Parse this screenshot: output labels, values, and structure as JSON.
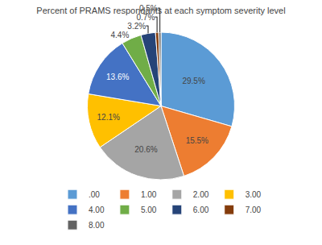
{
  "chart_data": {
    "type": "pie",
    "title": "Percent of PRAMS respondants at each symptom severity level",
    "categories": [
      ".00",
      "1.00",
      "2.00",
      "3.00",
      "4.00",
      "5.00",
      "6.00",
      "7.00",
      "8.00"
    ],
    "values": [
      29.5,
      15.5,
      20.6,
      12.1,
      13.6,
      4.4,
      3.2,
      0.7,
      0.5
    ],
    "value_labels": [
      "29.5%",
      "15.5%",
      "20.6%",
      "12.1%",
      "13.6%",
      "4.4%",
      "3.2%",
      "0.7%",
      "0.5%"
    ],
    "data_labels": true,
    "colors": [
      "#5B9BD5",
      "#ED7D31",
      "#A5A5A5",
      "#FFC000",
      "#4472C4",
      "#70AD47",
      "#264478",
      "#843C0C",
      "#636363"
    ],
    "legend": "bottom"
  }
}
